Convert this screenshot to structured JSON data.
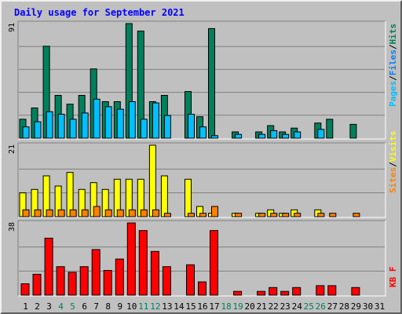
{
  "chart_data": {
    "type": "bar",
    "title": "Daily usage for September 2021",
    "days": [
      "1",
      "2",
      "3",
      "4",
      "5",
      "6",
      "7",
      "8",
      "9",
      "10",
      "11",
      "12",
      "13",
      "14",
      "15",
      "16",
      "17",
      "18",
      "19",
      "20",
      "21",
      "22",
      "23",
      "24",
      "25",
      "26",
      "27",
      "28",
      "29",
      "30",
      "31"
    ],
    "weekend_days": [
      "4",
      "5",
      "11",
      "12",
      "18",
      "19",
      "25",
      "26"
    ],
    "panels": [
      {
        "name": "hits-files-pages",
        "max_label": "91",
        "ymax": 91,
        "series": [
          {
            "name": "Hits",
            "color": "#00805c",
            "values": [
              15,
              24,
              73,
              34,
              27,
              34,
              55,
              29,
              29,
              91,
              85,
              29,
              34,
              0,
              37,
              17,
              87,
              0,
              5,
              0,
              5,
              10,
              5,
              8,
              0,
              12,
              15,
              0,
              11,
              0,
              0
            ]
          },
          {
            "name": "Pages",
            "color": "#00c0ff",
            "values": [
              9,
              13,
              21,
              19,
              15,
              20,
              31,
              25,
              23,
              29,
              15,
              28,
              18,
              0,
              19,
              9,
              2,
              0,
              3,
              0,
              3,
              6,
              3,
              5,
              0,
              7,
              0,
              0,
              0,
              0,
              0
            ]
          }
        ]
      },
      {
        "name": "visits-sites",
        "max_label": "21",
        "ymax": 21,
        "series": [
          {
            "name": "Visits",
            "color": "#ffff00",
            "values": [
              7,
              8,
              12,
              9,
              13,
              8,
              10,
              8,
              11,
              11,
              11,
              21,
              12,
              0,
              11,
              3,
              1,
              0,
              1,
              0,
              1,
              2,
              1,
              2,
              0,
              2,
              0,
              0,
              0,
              0,
              0
            ]
          },
          {
            "name": "Sites",
            "color": "#ff8000",
            "values": [
              2,
              2,
              2,
              2,
              2,
              2,
              3,
              2,
              2,
              2,
              2,
              2,
              1,
              0,
              1,
              1,
              3,
              0,
              1,
              0,
              1,
              1,
              1,
              1,
              0,
              1,
              1,
              0,
              1,
              0,
              0
            ]
          }
        ]
      },
      {
        "name": "kbytes",
        "max_label": "38",
        "ymax": 38,
        "series": [
          {
            "name": "KB F",
            "color": "#ff0000",
            "values": [
              6,
              11,
              30,
              15,
              12,
              15,
              24,
              13,
              19,
              38,
              34,
              23,
              15,
              0,
              16,
              7,
              34,
              0,
              2,
              0,
              2,
              4,
              2,
              4,
              0,
              5,
              5,
              0,
              4,
              0,
              0
            ]
          }
        ]
      }
    ],
    "side_labels": {
      "top": [
        "Pages",
        "/",
        "Files",
        "/",
        "Hits"
      ],
      "middle": [
        "Sites",
        "/",
        "Visits"
      ],
      "bottom": [
        "KB F"
      ]
    },
    "colors": {
      "background": "#c0c0c0",
      "title": "#0000ff",
      "weekday_label": "#000000",
      "weekend_label": "#00805c",
      "pages_label": "#00c0ff",
      "files_label": "#0080ff",
      "hits_label": "#00805c",
      "sites_label": "#ff8000",
      "visits_label": "#ffff00",
      "kbf_label": "#ff0000"
    }
  }
}
